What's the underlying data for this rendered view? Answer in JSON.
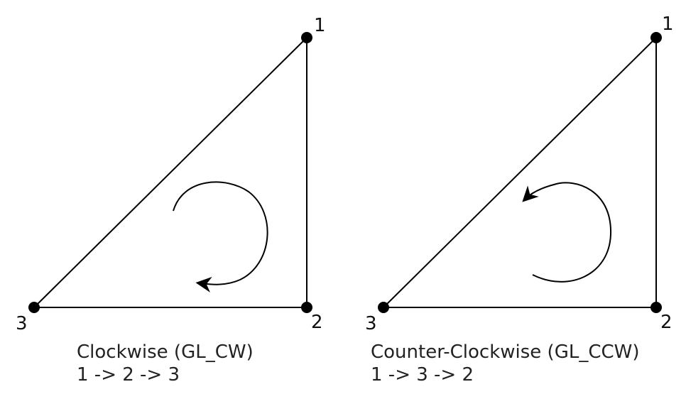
{
  "diagrams": [
    {
      "id": "clockwise",
      "vertices": [
        {
          "label": "1"
        },
        {
          "label": "2"
        },
        {
          "label": "3"
        }
      ],
      "title": "Clockwise (GL_CW)",
      "order": "1 -> 2 -> 3",
      "rotation": "clockwise"
    },
    {
      "id": "counter-clockwise",
      "vertices": [
        {
          "label": "1"
        },
        {
          "label": "2"
        },
        {
          "label": "3"
        }
      ],
      "title": "Counter-Clockwise (GL_CCW)",
      "order": "1 -> 3 -> 2",
      "rotation": "counter-clockwise"
    }
  ],
  "colors": {
    "stroke": "#000000",
    "text": "#222222"
  }
}
